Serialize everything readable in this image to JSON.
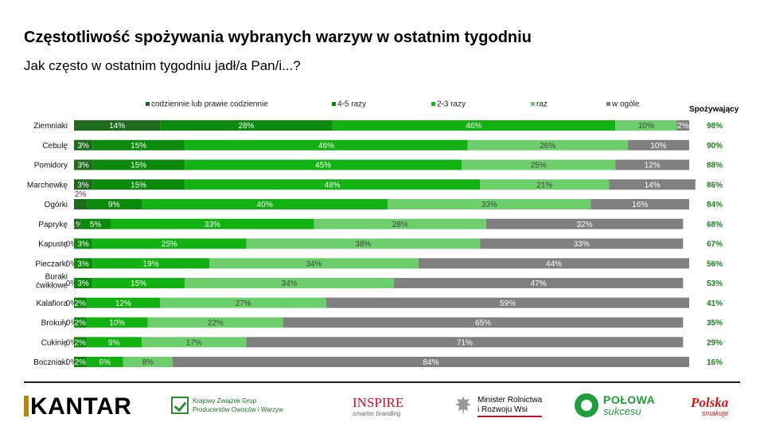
{
  "header": {
    "title": "Częstotliwość spożywania wybranych warzyw w ostatnim tygodniu",
    "subtitle": "Jak często w ostatnim tygodniu jadł/a Pan/i...?",
    "consumers_header": "Spożywający"
  },
  "colors": {
    "daily": "#1e6b1e",
    "four_five": "#0b8a0b",
    "two_three": "#12b212",
    "once": "#6ccf6c",
    "none": "#808080",
    "consumers_text": "#1a7f1a"
  },
  "chart_data": {
    "type": "bar",
    "orientation": "horizontal",
    "stacked": true,
    "percent": true,
    "legend_position": "top",
    "categories": [
      "Ziemniaki",
      "Cebulę",
      "Pomidory",
      "Marchewkę",
      "Ogórki",
      "Paprykę",
      "Kapustę",
      "Pieczarki",
      "Buraki ćwikłowe",
      "Kalafiora",
      "Brokuły",
      "Cukinię",
      "Boczniaki"
    ],
    "series": [
      {
        "name": "codziennie lub prawie codziennie",
        "values": [
          14,
          3,
          3,
          3,
          2,
          1,
          0,
          0,
          0,
          0,
          0,
          0,
          0
        ]
      },
      {
        "name": "4-5 razy",
        "values": [
          28,
          15,
          15,
          15,
          9,
          5,
          3,
          3,
          3,
          2,
          2,
          2,
          2
        ]
      },
      {
        "name": "2-3 razy",
        "values": [
          46,
          46,
          45,
          48,
          40,
          33,
          25,
          19,
          15,
          12,
          10,
          9,
          6
        ]
      },
      {
        "name": "raz",
        "values": [
          10,
          26,
          25,
          21,
          33,
          28,
          38,
          34,
          34,
          27,
          22,
          17,
          8
        ]
      },
      {
        "name": "w ogóle",
        "values": [
          2,
          10,
          12,
          14,
          16,
          32,
          33,
          44,
          47,
          59,
          65,
          71,
          84
        ]
      }
    ],
    "consumers": [
      "98%",
      "90%",
      "88%",
      "86%",
      "84%",
      "68%",
      "67%",
      "56%",
      "53%",
      "41%",
      "35%",
      "29%",
      "16%"
    ]
  },
  "footer": {
    "logos": {
      "kantar": "KANTAR",
      "kzg_lines": [
        "Krajowy Związek Grup",
        "Producentów Owoców i Warzyw"
      ],
      "inspire": "INSPIRE",
      "inspire_tagline": "smarter branding",
      "minister_lines": [
        "Minister Rolnictwa",
        "i Rozwoju Wsi"
      ],
      "polowa": "POŁOWA",
      "polowa_tagline": "sukcesu",
      "polska": "Polska",
      "polska_tagline": "smakuje"
    }
  }
}
